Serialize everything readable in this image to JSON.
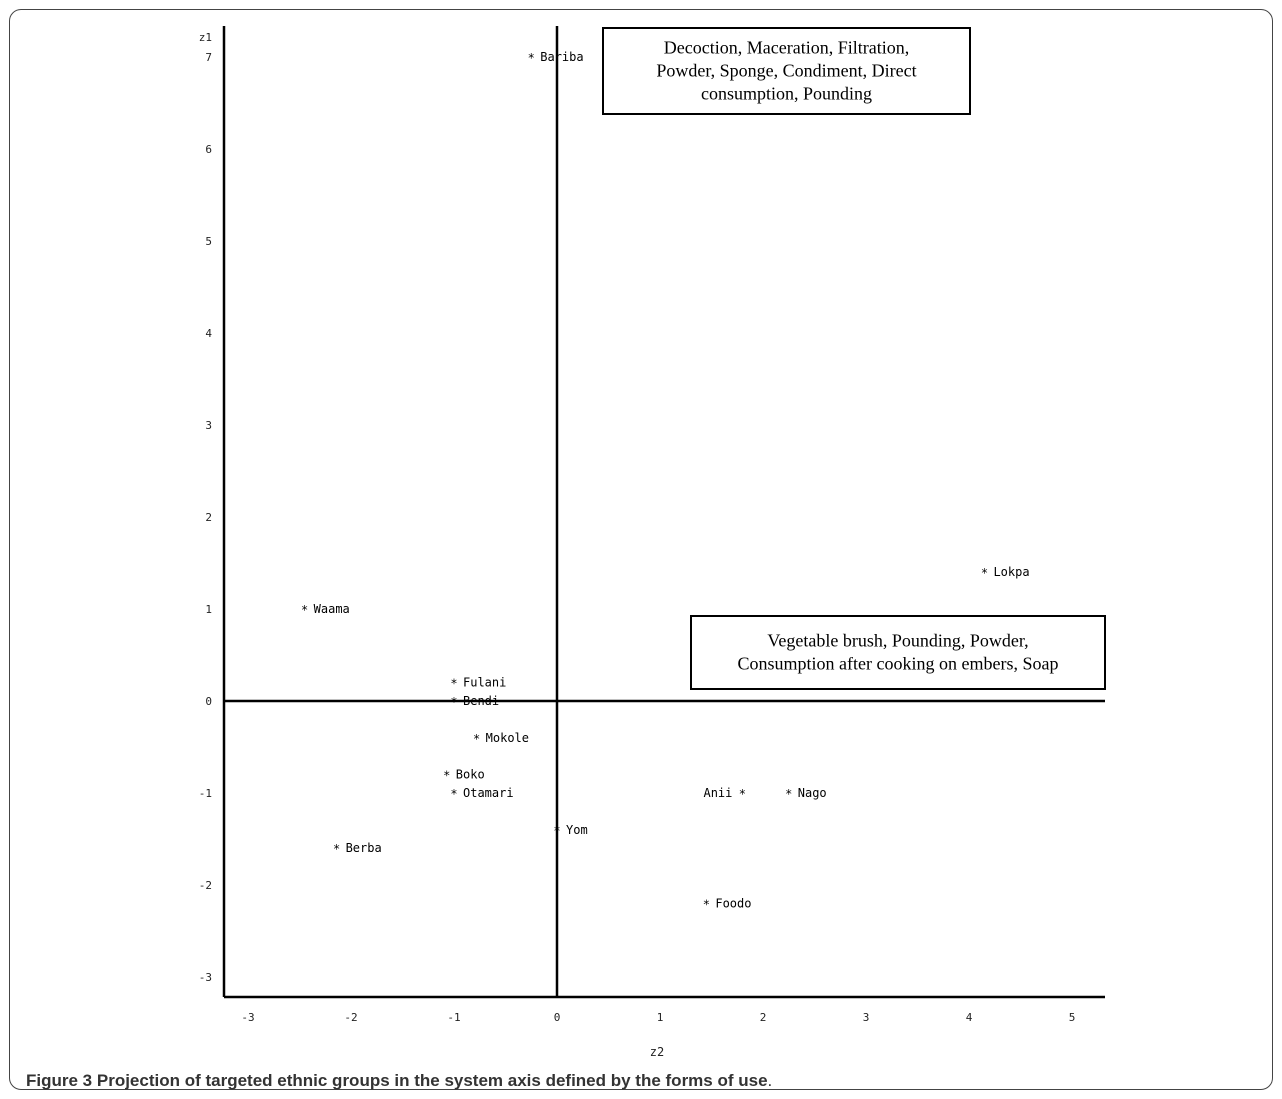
{
  "chart_data": {
    "type": "scatter",
    "xlabel": "z2",
    "ylabel": "z1",
    "xlim": [
      -3.3,
      5.3
    ],
    "ylim": [
      -3.2,
      7.3
    ],
    "xticks": [
      "-3",
      "-2",
      "-1",
      "0",
      "1",
      "2",
      "3",
      "4",
      "5"
    ],
    "yticks": [
      "7",
      "6",
      "5",
      "4",
      "3",
      "2",
      "1",
      "0",
      "-1",
      "-2",
      "-3"
    ],
    "points": [
      {
        "label": "Bariba",
        "x": -0.25,
        "y": 7.0,
        "label_side": "right"
      },
      {
        "label": "Lokpa",
        "x": 4.15,
        "y": 1.4,
        "label_side": "right"
      },
      {
        "label": "Waama",
        "x": -2.45,
        "y": 1.0,
        "label_side": "right"
      },
      {
        "label": "Fulani",
        "x": -1.0,
        "y": 0.2,
        "label_side": "right"
      },
      {
        "label": "Bendi",
        "x": -1.0,
        "y": 0.0,
        "label_side": "right"
      },
      {
        "label": "Mokole",
        "x": -0.78,
        "y": -0.4,
        "label_side": "right"
      },
      {
        "label": "Boko",
        "x": -1.07,
        "y": -0.8,
        "label_side": "right"
      },
      {
        "label": "Otamari",
        "x": -1.0,
        "y": -1.0,
        "label_side": "right"
      },
      {
        "label": "Anii",
        "x": 1.8,
        "y": -1.0,
        "label_side": "left"
      },
      {
        "label": "Nago",
        "x": 2.25,
        "y": -1.0,
        "label_side": "right"
      },
      {
        "label": "Yom",
        "x": 0.0,
        "y": -1.4,
        "label_side": "right"
      },
      {
        "label": "Berba",
        "x": -2.14,
        "y": -1.6,
        "label_side": "right"
      },
      {
        "label": "Foodo",
        "x": 1.45,
        "y": -2.2,
        "label_side": "right"
      }
    ],
    "annotations": [
      {
        "lines": [
          "Decoction, Maceration, Filtration,",
          "Powder, Sponge, Condiment, Direct",
          "consumption, Pounding"
        ]
      },
      {
        "lines": [
          "Vegetable brush, Pounding, Powder,",
          "Consumption after cooking on embers, Soap"
        ]
      }
    ]
  },
  "caption": {
    "label": "Figure 3",
    "text": "Projection of targeted ethnic groups in the system axis defined by the forms of use",
    "end": "."
  }
}
